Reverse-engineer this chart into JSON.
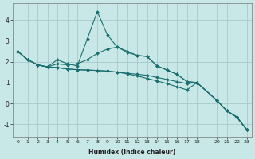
{
  "xlabel": "Humidex (Indice chaleur)",
  "bg_color": "#c8e8e8",
  "grid_color": "#a8c8cc",
  "line_color": "#1a6e6e",
  "xlim": [
    -0.5,
    23.5
  ],
  "ylim": [
    -1.6,
    4.8
  ],
  "yticks": [
    -1,
    0,
    1,
    2,
    3,
    4
  ],
  "xticks": [
    0,
    1,
    2,
    3,
    4,
    5,
    6,
    7,
    8,
    9,
    10,
    11,
    12,
    13,
    14,
    15,
    16,
    17,
    18,
    20,
    21,
    22,
    23
  ],
  "series": [
    {
      "x": [
        0,
        1,
        2,
        3,
        4,
        5,
        6,
        7,
        8,
        9,
        10,
        11,
        12,
        13,
        14,
        15,
        16,
        17,
        18,
        20,
        21,
        22,
        23
      ],
      "y": [
        2.5,
        2.1,
        1.85,
        1.75,
        2.1,
        1.9,
        1.8,
        3.1,
        4.4,
        3.3,
        2.7,
        2.45,
        2.3,
        2.25,
        1.8,
        1.6,
        1.4,
        1.05,
        1.0,
        0.15,
        -0.35,
        -0.65,
        -1.25
      ]
    },
    {
      "x": [
        0,
        1,
        2,
        3,
        4,
        5,
        6,
        7,
        8,
        9,
        10,
        11,
        12,
        13,
        14,
        15,
        16,
        17,
        18,
        20,
        21,
        22,
        23
      ],
      "y": [
        2.5,
        2.1,
        1.85,
        1.75,
        1.9,
        1.85,
        1.9,
        2.1,
        2.4,
        2.6,
        2.7,
        2.5,
        2.3,
        2.25,
        1.8,
        1.6,
        1.4,
        1.05,
        1.0,
        0.15,
        -0.35,
        -0.65,
        -1.25
      ]
    },
    {
      "x": [
        0,
        1,
        2,
        3,
        4,
        5,
        6,
        7,
        8,
        9,
        10,
        11,
        12,
        13,
        14,
        15,
        16,
        17,
        18,
        20,
        21,
        22,
        23
      ],
      "y": [
        2.5,
        2.1,
        1.85,
        1.75,
        1.72,
        1.65,
        1.62,
        1.6,
        1.58,
        1.55,
        1.5,
        1.45,
        1.4,
        1.35,
        1.25,
        1.15,
        1.05,
        0.95,
        1.0,
        0.15,
        -0.35,
        -0.65,
        -1.25
      ]
    },
    {
      "x": [
        0,
        1,
        2,
        3,
        4,
        5,
        6,
        7,
        8,
        9,
        10,
        11,
        12,
        13,
        14,
        15,
        16,
        17,
        18,
        20,
        21,
        22,
        23
      ],
      "y": [
        2.5,
        2.1,
        1.85,
        1.75,
        1.72,
        1.65,
        1.62,
        1.6,
        1.58,
        1.55,
        1.5,
        1.42,
        1.32,
        1.2,
        1.08,
        0.95,
        0.8,
        0.65,
        1.0,
        0.15,
        -0.35,
        -0.65,
        -1.25
      ]
    }
  ]
}
